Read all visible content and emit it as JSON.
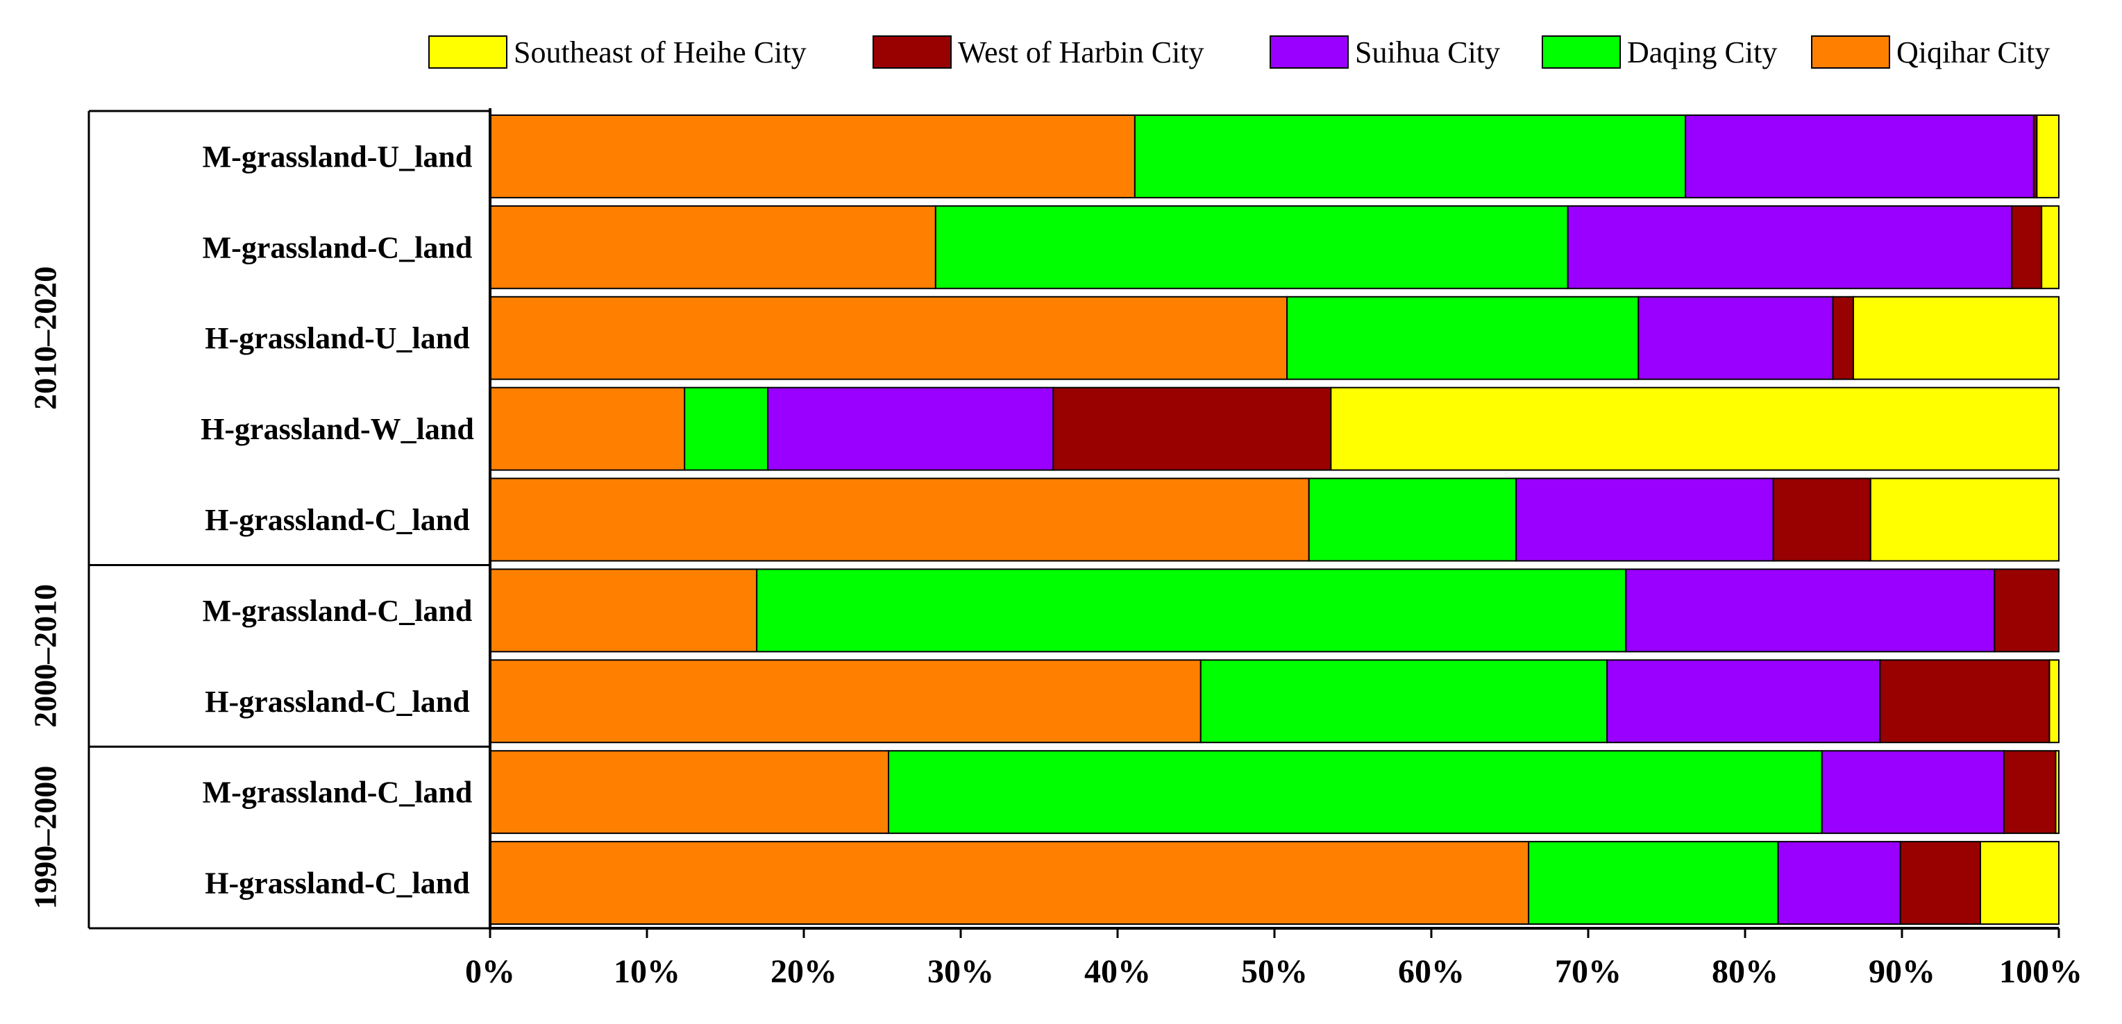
{
  "chart_data": {
    "type": "bar",
    "orientation": "horizontal",
    "stacked": "percent",
    "title": "",
    "xlabel": "",
    "ylabel": "",
    "xlim": [
      0,
      100
    ],
    "x_ticks": [
      "0%",
      "10%",
      "20%",
      "30%",
      "40%",
      "50%",
      "60%",
      "70%",
      "80%",
      "90%",
      "100%"
    ],
    "legend_position": "top-right",
    "grid": false,
    "periods": [
      {
        "label": "2010–2020",
        "rows": [
          0,
          1,
          2,
          3,
          4
        ]
      },
      {
        "label": "2000–2010",
        "rows": [
          5,
          6
        ]
      },
      {
        "label": "1990–2000",
        "rows": [
          7,
          8
        ]
      }
    ],
    "categories": [
      "M-grassland-U_land",
      "M-grassland-C_land",
      "H-grassland-U_land",
      "H-grassland-W_land",
      "H-grassland-C_land",
      "M-grassland-C_land",
      "H-grassland-C_land",
      "M-grassland-C_land",
      "H-grassland-C_land"
    ],
    "legend": [
      "Southeast of Heihe City",
      "West of Harbin City",
      "Suihua City",
      "Daqing City",
      "Qiqihar City"
    ],
    "series": [
      {
        "name": "Qiqihar City",
        "color": "#FF8000",
        "values": [
          41.1,
          28.4,
          50.8,
          12.4,
          52.2,
          17.0,
          45.3,
          25.4,
          66.2
        ]
      },
      {
        "name": "Daqing City",
        "color": "#00FF00",
        "values": [
          35.1,
          40.3,
          22.4,
          5.3,
          13.2,
          55.4,
          25.9,
          59.5,
          15.9
        ]
      },
      {
        "name": "Suihua City",
        "color": "#9900FF",
        "values": [
          22.2,
          28.3,
          12.4,
          18.2,
          16.4,
          23.5,
          17.4,
          11.6,
          7.8
        ]
      },
      {
        "name": "West of Harbin City",
        "color": "#990000",
        "values": [
          0.2,
          1.9,
          1.3,
          17.7,
          6.2,
          4.1,
          10.8,
          3.3,
          5.1
        ]
      },
      {
        "name": "Southeast of Heihe City",
        "color": "#FFFF00",
        "values": [
          1.4,
          1.1,
          13.1,
          46.4,
          12.0,
          0.0,
          0.6,
          0.2,
          5.0
        ]
      }
    ]
  }
}
